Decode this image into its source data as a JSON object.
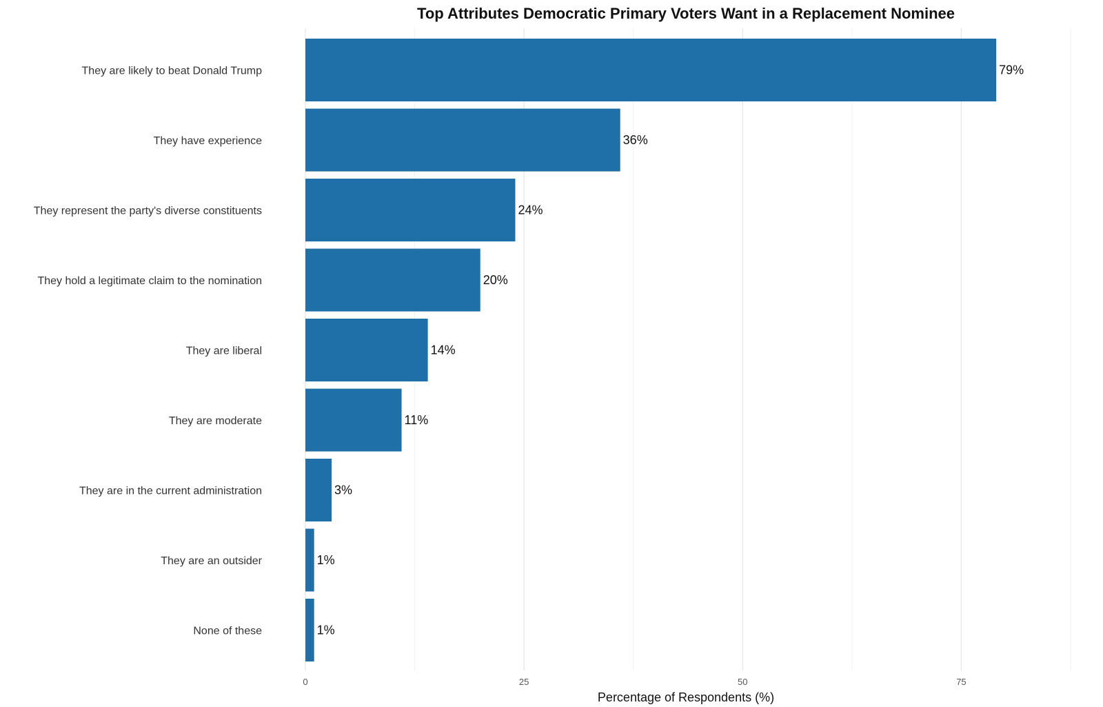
{
  "chart_data": {
    "type": "bar",
    "orientation": "horizontal",
    "title": "Top Attributes Democratic Primary Voters Want in a Replacement Nominee",
    "xlabel": "Percentage of Respondents (%)",
    "ylabel": "",
    "categories": [
      "They are likely to beat Donald Trump",
      "They have experience",
      "They represent the party's diverse constituents",
      "They hold a legitimate claim to the nomination",
      "They are liberal",
      "They are moderate",
      "They are in the current administration",
      "They are an outsider",
      "None of these"
    ],
    "values": [
      79,
      36,
      24,
      20,
      14,
      11,
      3,
      1,
      1
    ],
    "value_labels": [
      "79%",
      "36%",
      "24%",
      "20%",
      "14%",
      "11%",
      "3%",
      "1%",
      "1%"
    ],
    "xlim": [
      0,
      87.5
    ],
    "xticks": [
      0,
      25,
      50,
      75
    ],
    "xtick_labels": [
      "0",
      "25",
      "50",
      "75"
    ],
    "grid": true,
    "legend": "none",
    "bar_color": "#1f6fa9"
  }
}
